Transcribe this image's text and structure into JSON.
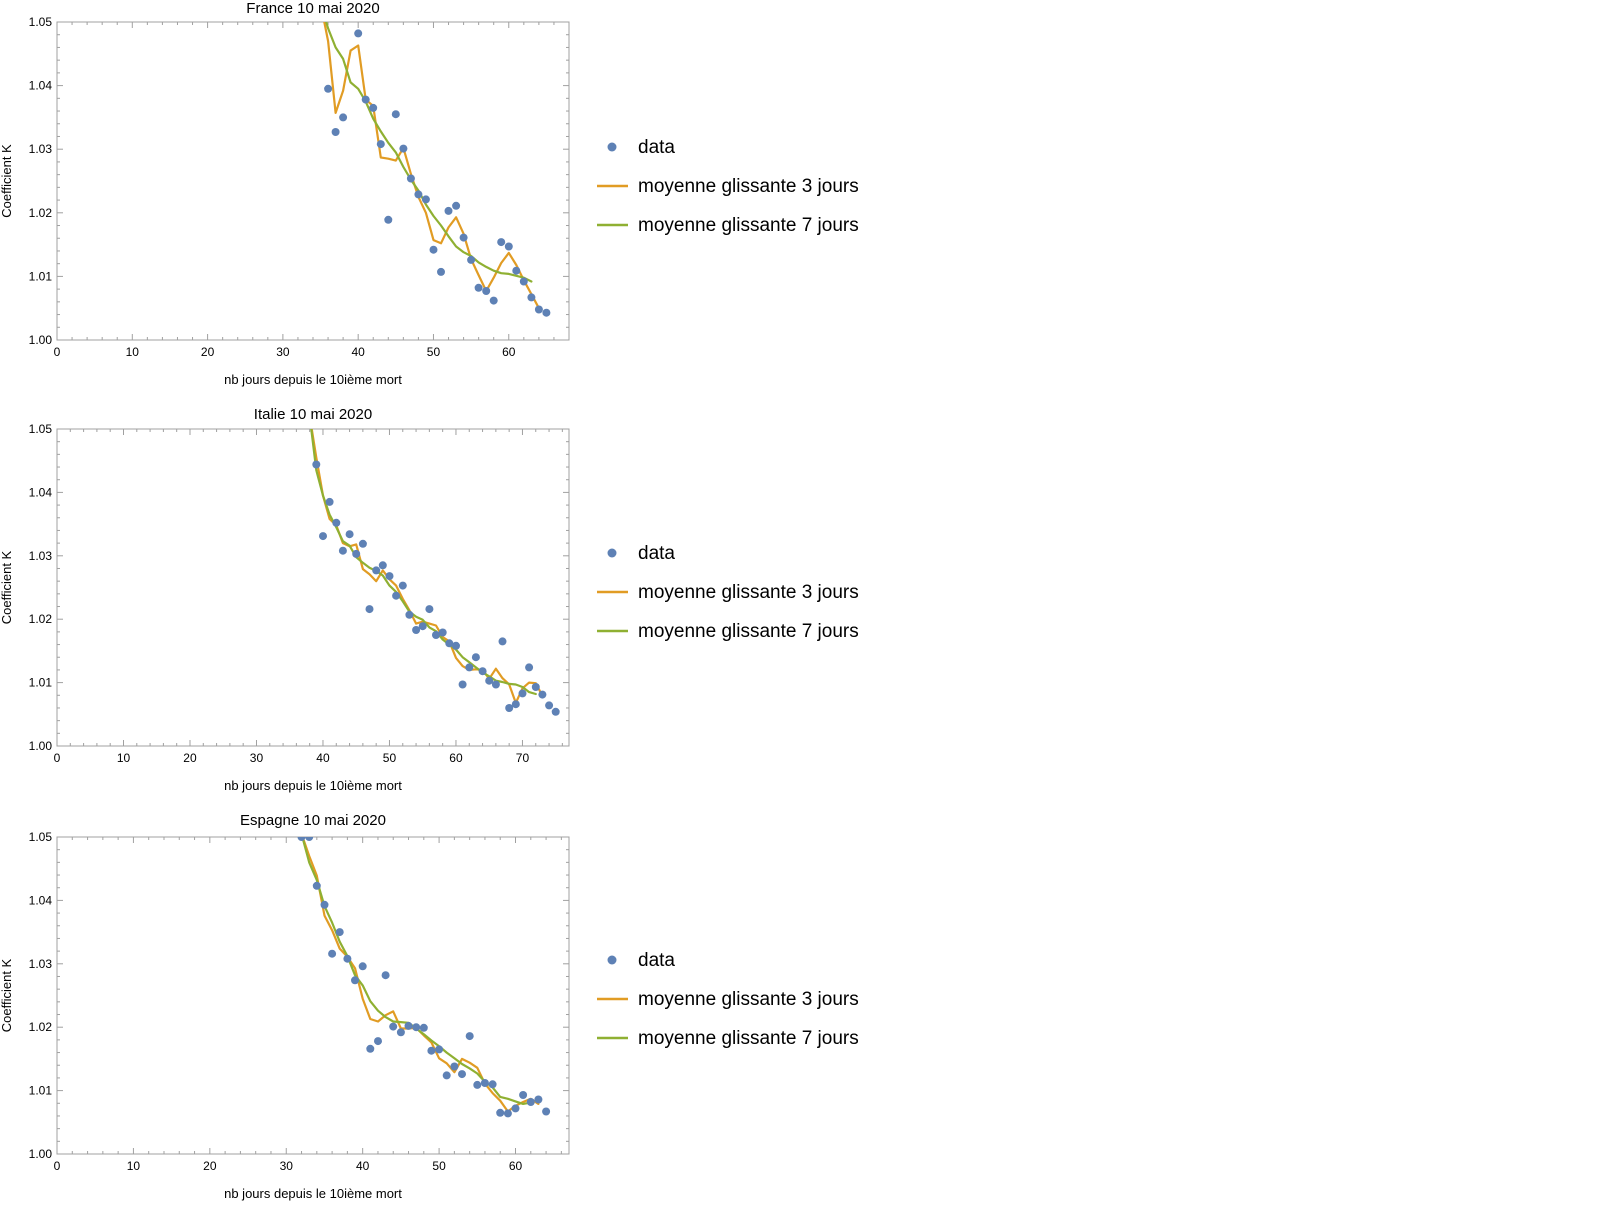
{
  "colors": {
    "data": "#5e81b5",
    "ma3": "#e19c24",
    "ma7": "#8fb032",
    "frame": "#a0a0a0",
    "text": "#000000"
  },
  "chart_data": [
    {
      "type": "scatter",
      "title": "France 10 mai 2020",
      "xlabel": "nb jours depuis le 10ième mort",
      "ylabel": "Coefficient K",
      "xlim": [
        0,
        68
      ],
      "ylim": [
        1.0,
        1.05
      ],
      "xticks": [
        0,
        10,
        20,
        30,
        40,
        50,
        60
      ],
      "xtick_labels": [
        "0",
        "10",
        "20",
        "30",
        "40",
        "50",
        "60"
      ],
      "yticks": [
        1.0,
        1.01,
        1.02,
        1.03,
        1.04,
        1.05
      ],
      "ytick_labels": [
        "1.00",
        "1.01",
        "1.02",
        "1.03",
        "1.04",
        "1.05"
      ],
      "legend": [
        "data",
        "moyenne glissante 3 jours",
        "moyenne glissante 7 jours"
      ],
      "series": [
        {
          "name": "data",
          "kind": "points",
          "x": [
            36,
            37,
            38,
            40,
            41,
            42,
            43,
            44,
            45,
            46,
            47,
            48,
            49,
            50,
            51,
            52,
            53,
            54,
            55,
            56,
            57,
            58,
            59,
            60,
            61,
            62,
            63,
            64,
            65
          ],
          "y": [
            1.0395,
            1.0327,
            1.035,
            1.0482,
            1.0378,
            1.0365,
            1.0308,
            1.0189,
            1.0355,
            1.0301,
            1.0254,
            1.0229,
            1.0221,
            1.0142,
            1.0107,
            1.0203,
            1.0211,
            1.0161,
            1.0126,
            1.0082,
            1.0077,
            1.0062,
            1.0154,
            1.0147,
            1.0109,
            1.0092,
            1.0067,
            1.0048,
            1.0043
          ]
        },
        {
          "name": "moyenne glissante 3 jours",
          "kind": "line",
          "x": [
            35,
            36,
            37,
            38,
            39,
            40,
            41,
            42,
            43,
            44,
            45,
            46,
            47,
            48,
            49,
            50,
            51,
            52,
            53,
            54,
            55,
            56,
            57,
            58,
            59,
            60,
            61,
            62,
            63,
            64
          ],
          "y": [
            1.053,
            1.047,
            1.0357,
            1.0392,
            1.0455,
            1.0463,
            1.0378,
            1.0368,
            1.0287,
            1.0285,
            1.0282,
            1.0302,
            1.0261,
            1.0225,
            1.02,
            1.0157,
            1.0152,
            1.0177,
            1.0193,
            1.0167,
            1.0127,
            1.0102,
            1.0077,
            1.0098,
            1.0121,
            1.0137,
            1.0118,
            1.0094,
            1.0072,
            1.005
          ]
        },
        {
          "name": "moyenne glissante 7 jours",
          "kind": "line",
          "x": [
            35,
            36,
            37,
            38,
            39,
            40,
            41,
            42,
            43,
            44,
            45,
            46,
            47,
            48,
            49,
            50,
            51,
            52,
            53,
            54,
            55,
            56,
            57,
            58,
            59,
            60,
            61,
            62,
            63
          ],
          "y": [
            1.053,
            1.049,
            1.046,
            1.0442,
            1.0405,
            1.0395,
            1.0375,
            1.0348,
            1.0328,
            1.031,
            1.0295,
            1.0272,
            1.0252,
            1.0235,
            1.0213,
            1.0195,
            1.018,
            1.0163,
            1.0147,
            1.0138,
            1.0132,
            1.0122,
            1.0115,
            1.0109,
            1.0105,
            1.0104,
            1.0101,
            1.0098,
            1.0092
          ]
        }
      ]
    },
    {
      "type": "scatter",
      "title": "Italie 10 mai 2020",
      "xlabel": "nb jours depuis le 10ième mort",
      "ylabel": "Coefficient K",
      "xlim": [
        0,
        77
      ],
      "ylim": [
        1.0,
        1.05
      ],
      "xticks": [
        0,
        10,
        20,
        30,
        40,
        50,
        60,
        70
      ],
      "xtick_labels": [
        "0",
        "10",
        "20",
        "30",
        "40",
        "50",
        "60",
        "70"
      ],
      "yticks": [
        1.0,
        1.01,
        1.02,
        1.03,
        1.04,
        1.05
      ],
      "ytick_labels": [
        "1.00",
        "1.01",
        "1.02",
        "1.03",
        "1.04",
        "1.05"
      ],
      "legend": [
        "data",
        "moyenne glissante 3 jours",
        "moyenne glissante 7 jours"
      ],
      "series": [
        {
          "name": "data",
          "kind": "points",
          "x": [
            39,
            40,
            41,
            42,
            43,
            44,
            45,
            46,
            47,
            48,
            49,
            50,
            51,
            52,
            53,
            54,
            55,
            56,
            57,
            58,
            59,
            60,
            61,
            62,
            63,
            64,
            65,
            66,
            67,
            68,
            69,
            70,
            71,
            72,
            73,
            74,
            75
          ],
          "y": [
            1.0444,
            1.0331,
            1.0385,
            1.0352,
            1.0308,
            1.0334,
            1.0303,
            1.0319,
            1.0216,
            1.0277,
            1.0285,
            1.0268,
            1.0237,
            1.0253,
            1.0207,
            1.0183,
            1.0189,
            1.0216,
            1.0175,
            1.0179,
            1.0162,
            1.0158,
            1.0097,
            1.0124,
            1.014,
            1.0118,
            1.0103,
            1.0097,
            1.0165,
            1.006,
            1.0066,
            1.0083,
            1.0124,
            1.0093,
            1.0081,
            1.0064,
            1.0054
          ]
        },
        {
          "name": "moyenne glissante 3 jours",
          "kind": "line",
          "x": [
            38,
            39,
            40,
            41,
            42,
            43,
            44,
            45,
            46,
            47,
            48,
            49,
            50,
            51,
            52,
            53,
            54,
            55,
            56,
            57,
            58,
            59,
            60,
            61,
            62,
            63,
            64,
            65,
            66,
            67,
            68,
            69,
            70,
            71,
            72,
            73
          ],
          "y": [
            1.052,
            1.0455,
            1.0395,
            1.0358,
            1.0348,
            1.032,
            1.0315,
            1.0318,
            1.0279,
            1.0271,
            1.026,
            1.0277,
            1.0263,
            1.0253,
            1.0232,
            1.0214,
            1.0193,
            1.0196,
            1.0193,
            1.019,
            1.0172,
            1.0165,
            1.0139,
            1.0126,
            1.012,
            1.0121,
            1.012,
            1.0106,
            1.0122,
            1.0107,
            1.0097,
            1.0068,
            1.0091,
            1.01,
            1.0099,
            1.0079
          ]
        },
        {
          "name": "moyenne glissante 7 jours",
          "kind": "line",
          "x": [
            38,
            39,
            40,
            41,
            42,
            43,
            44,
            45,
            46,
            47,
            48,
            49,
            50,
            51,
            52,
            53,
            54,
            55,
            56,
            57,
            58,
            59,
            60,
            61,
            62,
            63,
            64,
            65,
            66,
            67,
            68,
            69,
            70,
            71,
            72
          ],
          "y": [
            1.052,
            1.0435,
            1.0395,
            1.0365,
            1.0345,
            1.0323,
            1.0316,
            1.0298,
            1.0289,
            1.0281,
            1.0276,
            1.0269,
            1.0253,
            1.0243,
            1.0228,
            1.0212,
            1.0204,
            1.0199,
            1.0187,
            1.0181,
            1.0168,
            1.016,
            1.0152,
            1.014,
            1.0132,
            1.0124,
            1.0116,
            1.011,
            1.0103,
            1.0101,
            1.0098,
            1.0097,
            1.0093,
            1.0085,
            1.0082
          ]
        }
      ]
    },
    {
      "type": "scatter",
      "title": "Espagne 10 mai 2020",
      "xlabel": "nb jours depuis le 10ième mort",
      "ylabel": "Coefficient K",
      "xlim": [
        0,
        67
      ],
      "ylim": [
        1.0,
        1.05
      ],
      "xticks": [
        0,
        10,
        20,
        30,
        40,
        50,
        60
      ],
      "xtick_labels": [
        "0",
        "10",
        "20",
        "30",
        "40",
        "50",
        "60"
      ],
      "yticks": [
        1.0,
        1.01,
        1.02,
        1.03,
        1.04,
        1.05
      ],
      "ytick_labels": [
        "1.00",
        "1.01",
        "1.02",
        "1.03",
        "1.04",
        "1.05"
      ],
      "legend": [
        "data",
        "moyenne glissante 3 jours",
        "moyenne glissante 7 jours"
      ],
      "series": [
        {
          "name": "data",
          "kind": "points",
          "x": [
            32,
            33,
            34,
            35,
            36,
            37,
            38,
            39,
            40,
            41,
            42,
            43,
            44,
            45,
            46,
            47,
            48,
            49,
            50,
            51,
            52,
            53,
            54,
            55,
            56,
            57,
            58,
            59,
            60,
            61,
            62,
            63,
            64
          ],
          "y": [
            1.05,
            1.05,
            1.0423,
            1.0393,
            1.0316,
            1.035,
            1.0308,
            1.0274,
            1.0296,
            1.0166,
            1.0178,
            1.0282,
            1.0201,
            1.0192,
            1.0202,
            1.02,
            1.0199,
            1.0163,
            1.0165,
            1.0124,
            1.0138,
            1.0126,
            1.0186,
            1.0109,
            1.0112,
            1.011,
            1.0065,
            1.0064,
            1.0072,
            1.0093,
            1.0082,
            1.0086,
            1.0067
          ]
        },
        {
          "name": "moyenne glissante 3 jours",
          "kind": "line",
          "x": [
            32,
            33,
            34,
            35,
            36,
            37,
            38,
            39,
            40,
            41,
            42,
            43,
            44,
            45,
            46,
            47,
            48,
            49,
            50,
            51,
            52,
            53,
            54,
            55,
            56,
            57,
            58,
            59,
            60,
            61,
            62,
            63
          ],
          "y": [
            1.0505,
            1.047,
            1.0439,
            1.0376,
            1.0353,
            1.0324,
            1.0311,
            1.0293,
            1.0245,
            1.0213,
            1.0209,
            1.0219,
            1.0225,
            1.0198,
            1.0198,
            1.0199,
            1.0187,
            1.0176,
            1.0151,
            1.0143,
            1.0129,
            1.015,
            1.0144,
            1.0136,
            1.0111,
            1.0096,
            1.0084,
            1.0067,
            1.0076,
            1.0082,
            1.0087,
            1.0079
          ]
        },
        {
          "name": "moyenne glissante 7 jours",
          "kind": "line",
          "x": [
            32,
            33,
            34,
            35,
            36,
            37,
            38,
            39,
            40,
            41,
            42,
            43,
            44,
            45,
            46,
            47,
            48,
            49,
            50,
            51,
            52,
            53,
            54,
            55,
            56,
            57,
            58,
            59,
            60,
            61,
            62
          ],
          "y": [
            1.0505,
            1.046,
            1.0432,
            1.0391,
            1.0365,
            1.0335,
            1.0312,
            1.0282,
            1.0266,
            1.0241,
            1.0226,
            1.0216,
            1.0209,
            1.0208,
            1.0207,
            1.0198,
            1.0189,
            1.0179,
            1.017,
            1.016,
            1.0151,
            1.0142,
            1.0135,
            1.0127,
            1.0114,
            1.0105,
            1.009,
            1.0087,
            1.0083,
            1.0079,
            1.0081
          ]
        }
      ]
    }
  ]
}
